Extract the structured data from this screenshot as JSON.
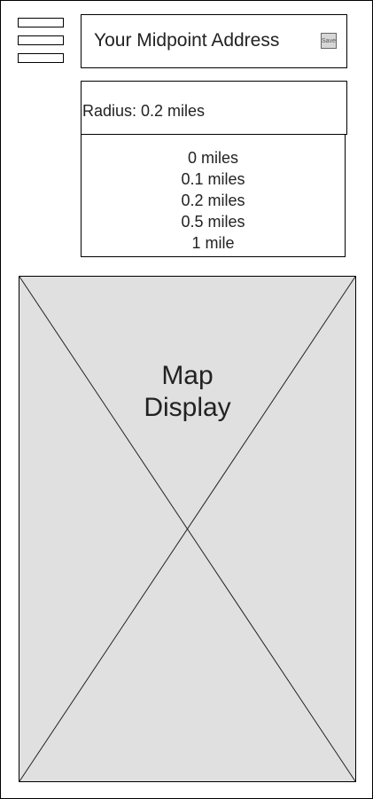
{
  "header": {
    "address_title": "Your Midpoint Address",
    "save_label": "Save"
  },
  "menu": {
    "icon": "hamburger-menu-icon"
  },
  "radius": {
    "selected_label": "Radius: 0.2 miles",
    "options": [
      "0 miles",
      "0.1 miles",
      "0.2 miles",
      "0.5 miles",
      "1 mile"
    ]
  },
  "map": {
    "label_line1": "Map",
    "label_line2": "Display",
    "placeholder_color": "#e0e0e0"
  }
}
